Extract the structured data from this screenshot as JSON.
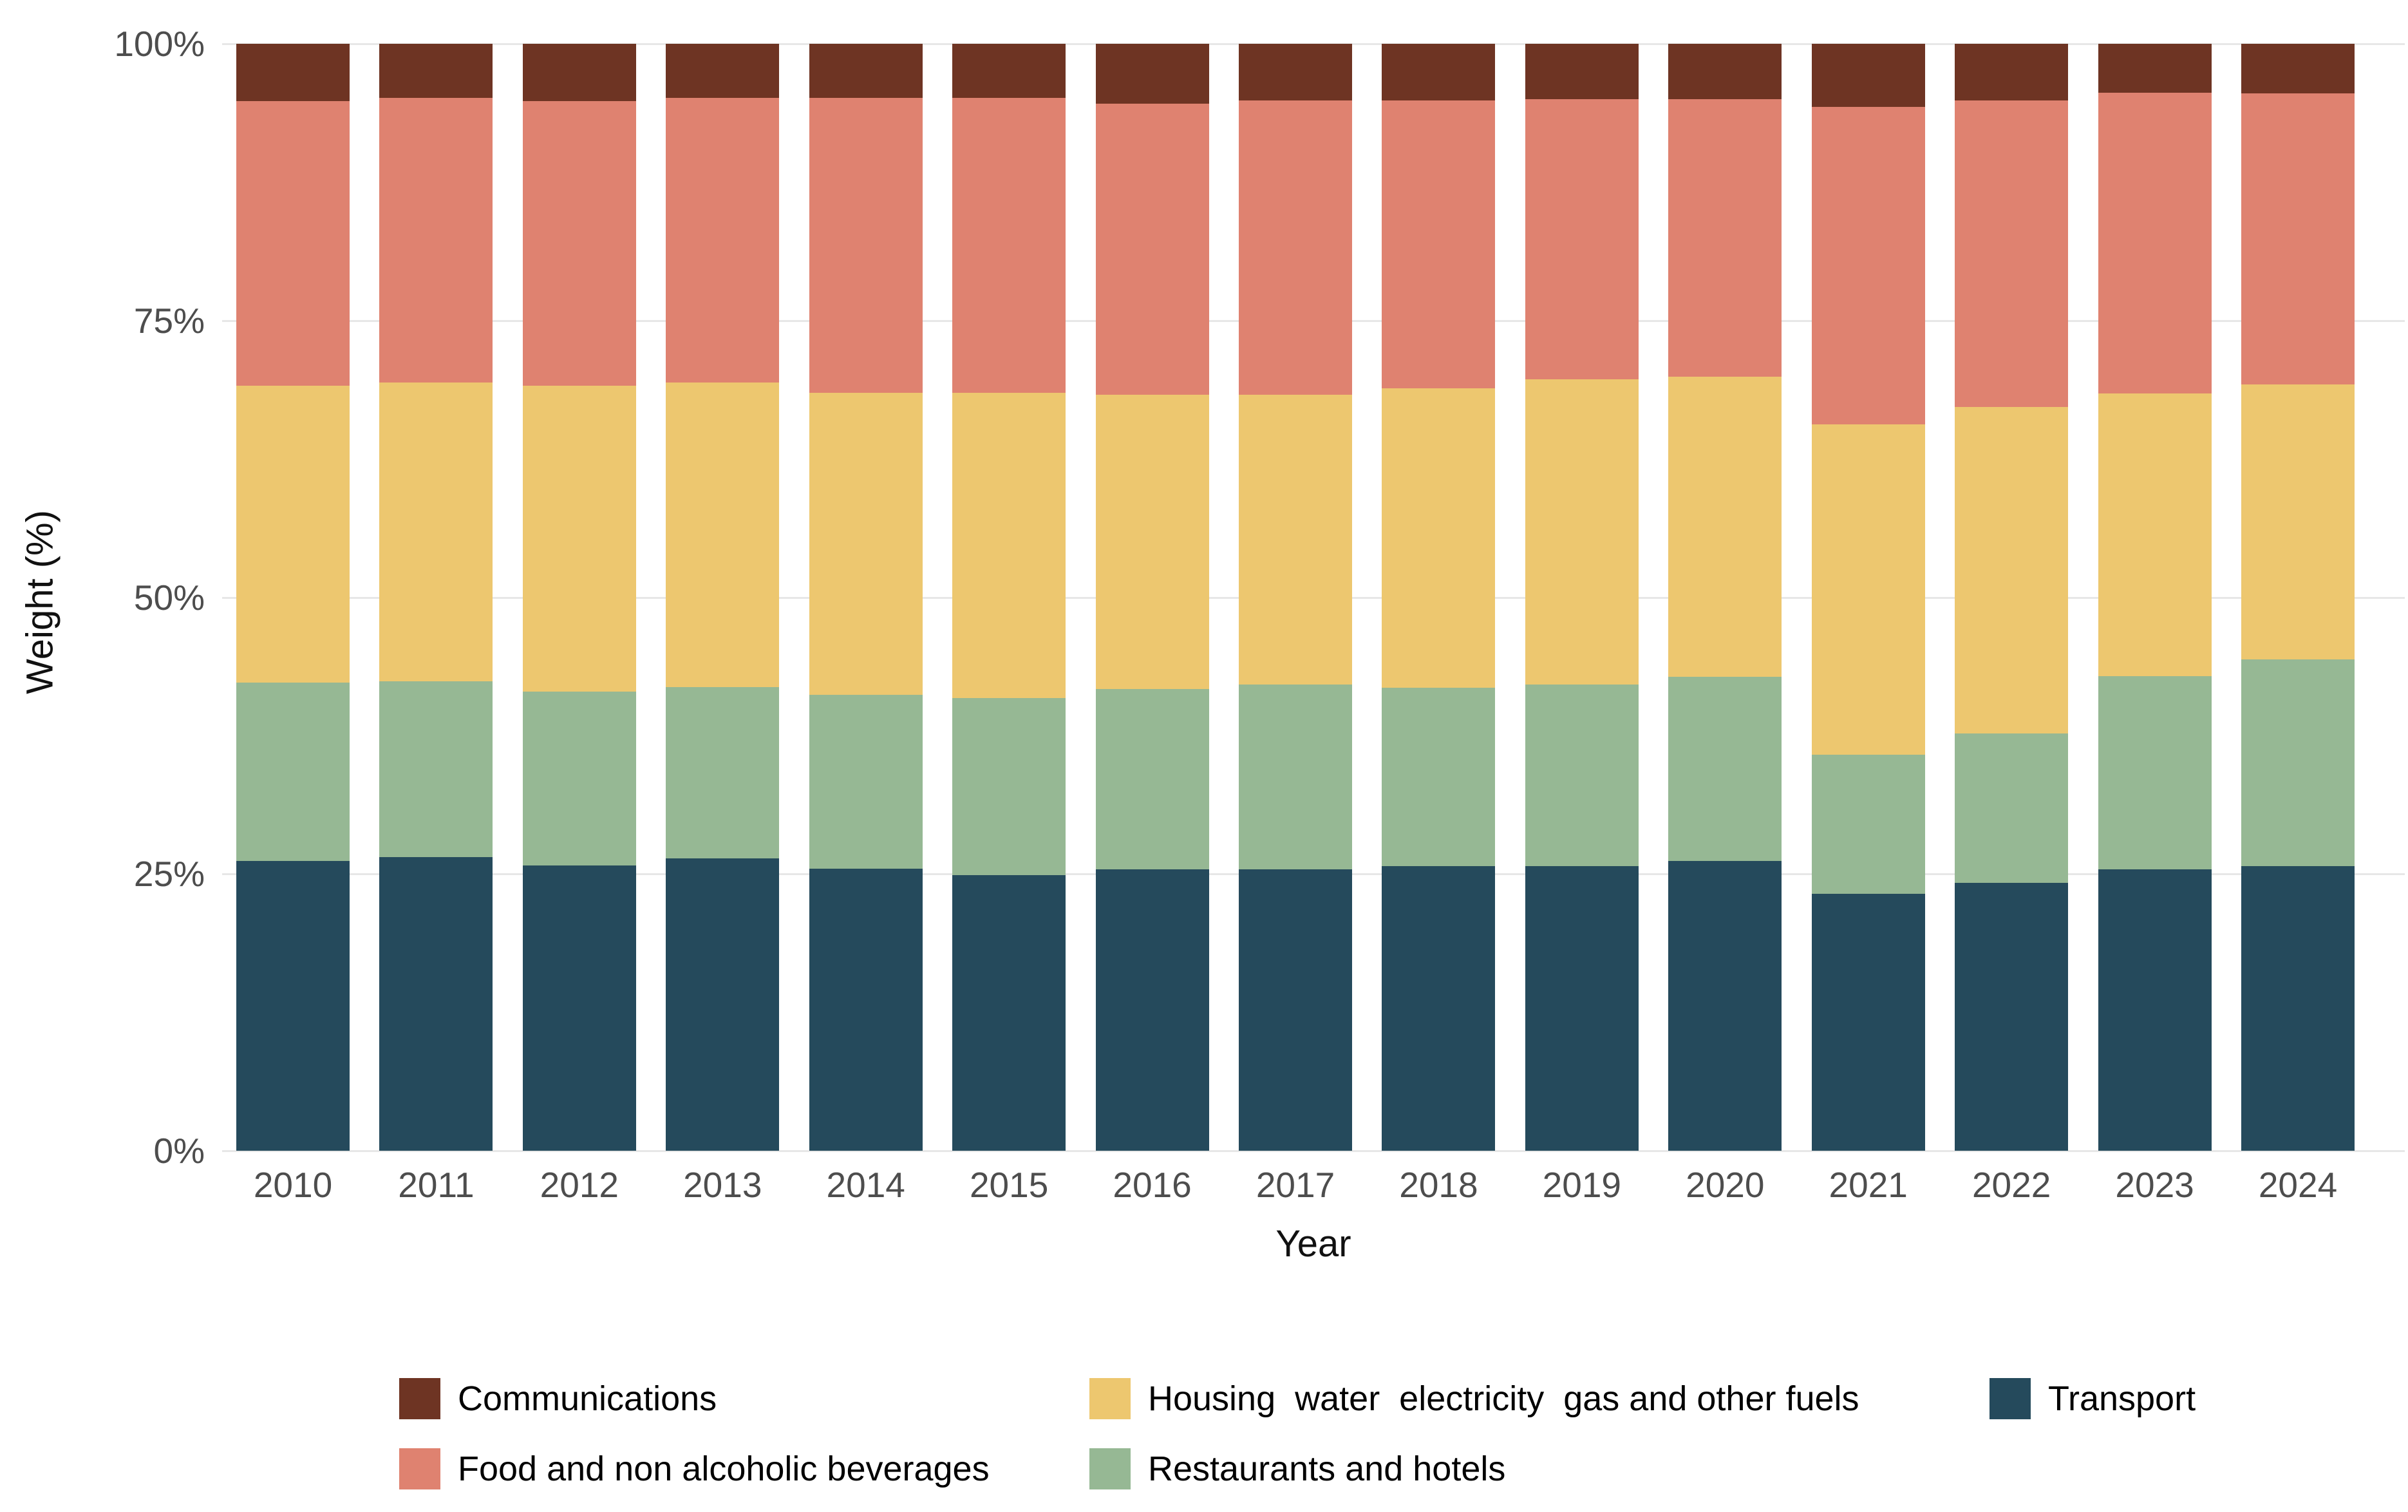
{
  "chart_data": {
    "type": "bar",
    "stacked": true,
    "normalized_to_100": true,
    "title": "",
    "xlabel": "Year",
    "ylabel": "Weight (%)",
    "grid": "horizontal-light",
    "legend_position": "bottom",
    "ylim": [
      0,
      100
    ],
    "y_ticks": [
      {
        "label": "0%",
        "value": 0
      },
      {
        "label": "25%",
        "value": 25
      },
      {
        "label": "50%",
        "value": 50
      },
      {
        "label": "75%",
        "value": 75
      },
      {
        "label": "100%",
        "value": 100
      }
    ],
    "categories": [
      "2010",
      "2011",
      "2012",
      "2013",
      "2014",
      "2015",
      "2016",
      "2017",
      "2018",
      "2019",
      "2020",
      "2021",
      "2022",
      "2023",
      "2024"
    ],
    "series": [
      {
        "name": "Transport",
        "color": "#254A5C",
        "values": [
          26.2,
          26.5,
          25.8,
          26.4,
          25.5,
          24.9,
          25.4,
          25.4,
          25.7,
          25.7,
          26.2,
          23.2,
          24.2,
          25.4,
          25.7
        ]
      },
      {
        "name": "Restaurants and hotels",
        "color": "#96B894",
        "values": [
          16.1,
          15.9,
          15.7,
          15.5,
          15.7,
          16.0,
          16.3,
          16.7,
          16.1,
          16.4,
          16.6,
          12.6,
          13.5,
          17.5,
          18.7
        ]
      },
      {
        "name": "Housing  water  electricity  gas and other fuels",
        "color": "#EDC76F",
        "values": [
          26.8,
          27.0,
          27.6,
          27.5,
          27.3,
          27.6,
          26.6,
          26.2,
          27.1,
          27.6,
          27.1,
          29.8,
          29.5,
          25.5,
          24.8
        ]
      },
      {
        "name": "Food and non alcoholic beverages",
        "color": "#DF8270",
        "values": [
          25.7,
          25.7,
          25.7,
          25.7,
          26.6,
          26.6,
          26.3,
          26.6,
          26.0,
          25.3,
          25.1,
          28.7,
          27.7,
          27.2,
          26.3
        ]
      },
      {
        "name": "Communications",
        "color": "#6E3423",
        "values": [
          5.2,
          4.9,
          5.2,
          4.9,
          4.9,
          4.9,
          5.4,
          5.1,
          5.1,
          5.0,
          5.0,
          5.7,
          5.1,
          4.4,
          4.5
        ]
      }
    ],
    "legend_display_order": [
      "Communications",
      "Housing  water  electricity  gas and other fuels",
      "Transport",
      "Food and non alcoholic beverages",
      "Restaurants and hotels"
    ]
  },
  "colors": {
    "background": "#ffffff",
    "gridline": "#e7e7e7",
    "tick_text": "#4d4d4d",
    "axis_title_text": "#111111",
    "legend_text": "#000000"
  }
}
